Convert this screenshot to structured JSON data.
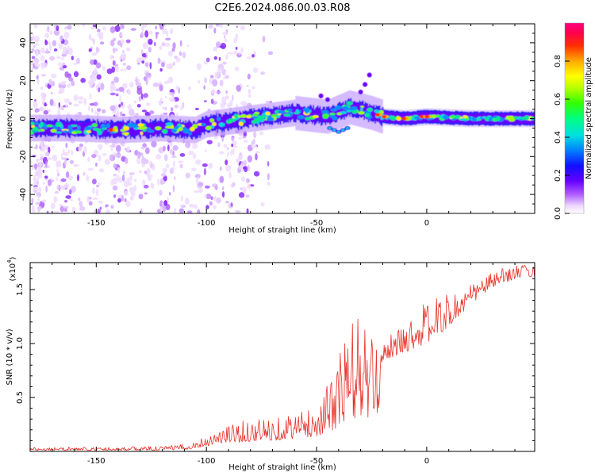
{
  "chart_data": [
    {
      "type": "heatmap",
      "title": "C2E6.2024.086.00.03.R08",
      "xlabel": "Height of straight line (km)",
      "ylabel": "Frequency (Hz)",
      "xlim": [
        -180,
        49
      ],
      "ylim": [
        -50,
        50
      ],
      "xticks": [
        -150,
        -100,
        -50,
        0
      ],
      "yticks": [
        -40,
        -20,
        0,
        20,
        40
      ],
      "colorbar": {
        "label": "Normalized spectral amplitude",
        "range": [
          0,
          1
        ],
        "ticks": [
          "0.0",
          "0.2",
          "0.4",
          "0.6",
          "0.8"
        ]
      },
      "ridge": {
        "description": "main spectral ridge frequency (Hz) vs height (km)",
        "x": [
          -180,
          -160,
          -140,
          -120,
          -105,
          -100,
          -80,
          -60,
          -45,
          -35,
          -25,
          -20,
          -10,
          0,
          20,
          49
        ],
        "y": [
          -5,
          -5,
          -6,
          -5,
          -6,
          -3,
          0,
          3,
          1,
          6,
          3,
          1,
          0,
          1,
          0,
          0
        ]
      }
    },
    {
      "type": "line",
      "ylabel": "SNR (10 * v/v)",
      "y_multiplier_label": "(x10",
      "y_multiplier_exp": "4",
      "yticks": [
        "0.5",
        "1.0",
        "1.5"
      ],
      "xlabel": "Height of straight line (km)",
      "xticks": [
        "-150",
        "-100",
        "-50",
        "0"
      ],
      "xlim": [
        -180,
        49
      ],
      "ylim": [
        0,
        1.75
      ],
      "series": [
        {
          "name": "SNR",
          "color": "#e8312a",
          "envelope": {
            "x": [
              -180,
              -150,
              -120,
              -110,
              -105,
              -100,
              -95,
              -90,
              -80,
              -70,
              -60,
              -50,
              -45,
              -40,
              -35,
              -30,
              -25,
              -22,
              -20,
              -15,
              -10,
              -5,
              0,
              5,
              10,
              15,
              20,
              25,
              30,
              35,
              40,
              45,
              49
            ],
            "low": [
              0.01,
              0.01,
              0.01,
              0.015,
              0.03,
              0.05,
              0.07,
              0.08,
              0.09,
              0.1,
              0.12,
              0.14,
              0.18,
              0.22,
              0.28,
              0.32,
              0.3,
              0.35,
              0.85,
              0.88,
              0.92,
              0.96,
              1.0,
              1.08,
              1.15,
              1.25,
              1.36,
              1.45,
              1.52,
              1.56,
              1.6,
              1.62,
              1.62
            ],
            "high": [
              0.04,
              0.04,
              0.05,
              0.07,
              0.1,
              0.15,
              0.2,
              0.25,
              0.3,
              0.32,
              0.36,
              0.42,
              0.62,
              0.92,
              1.22,
              1.35,
              1.05,
              0.9,
              1.05,
              1.1,
              1.18,
              1.3,
              1.4,
              1.43,
              1.46,
              1.52,
              1.55,
              1.62,
              1.66,
              1.7,
              1.73,
              1.73,
              1.72
            ]
          }
        }
      ]
    }
  ]
}
